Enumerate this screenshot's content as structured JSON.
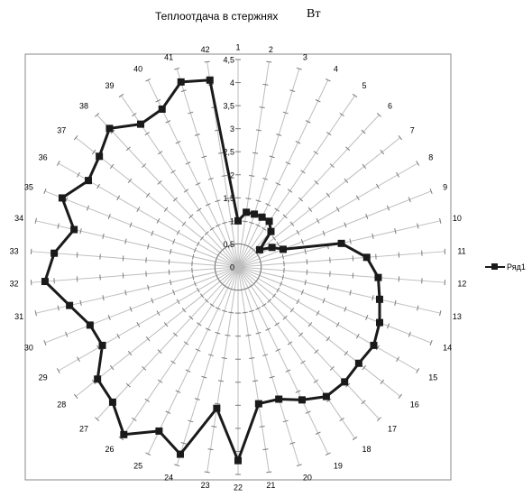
{
  "chart_data": {
    "type": "radar",
    "title": "Теплоотдача  в стержнях",
    "unit_label": "Вт",
    "categories": [
      "1",
      "2",
      "3",
      "4",
      "5",
      "6",
      "7",
      "8",
      "9",
      "10",
      "11",
      "12",
      "13",
      "14",
      "15",
      "16",
      "17",
      "18",
      "19",
      "20",
      "21",
      "22",
      "23",
      "24",
      "25",
      "26",
      "27",
      "28",
      "29",
      "30",
      "31",
      "32",
      "33",
      "34",
      "35",
      "36",
      "37",
      "38",
      "39",
      "40",
      "41",
      "42"
    ],
    "radial_ticks": [
      "0",
      "0,5",
      "1",
      "1,5",
      "2",
      "2,5",
      "3",
      "3,5",
      "4",
      "4,5"
    ],
    "rmax": 4.5,
    "series": [
      {
        "name": "Ряд1",
        "color": "#1a1a1a",
        "values": [
          1.0,
          1.2,
          1.2,
          1.2,
          1.2,
          1.05,
          0.6,
          0.85,
          1.05,
          2.3,
          2.8,
          3.05,
          3.15,
          3.3,
          3.4,
          3.35,
          3.4,
          3.4,
          3.2,
          3.0,
          3.0,
          4.2,
          3.1,
          4.25,
          3.95,
          4.4,
          4.0,
          3.9,
          3.4,
          3.45,
          3.75,
          4.2,
          4.0,
          3.65,
          4.1,
          3.75,
          3.85,
          4.1,
          3.75,
          3.8,
          4.2,
          4.1
        ]
      }
    ],
    "grid": true,
    "legend_position": "right"
  }
}
